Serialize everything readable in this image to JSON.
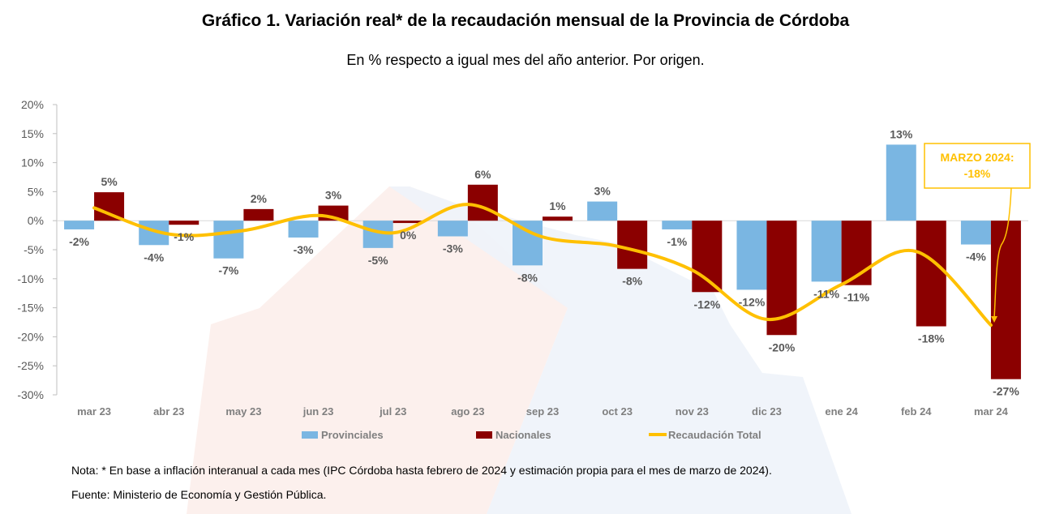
{
  "chart_data": {
    "type": "bar",
    "title": "Gráfico 1. Variación real* de la recaudación mensual de la Provincia de Córdoba",
    "subtitle": "En % respecto a igual mes del año anterior. Por origen.",
    "categories": [
      "mar 23",
      "abr 23",
      "may 23",
      "jun 23",
      "jul 23",
      "ago 23",
      "sep 23",
      "oct 23",
      "nov 23",
      "dic 23",
      "ene 24",
      "feb 24",
      "mar 24"
    ],
    "ylim": [
      -30,
      20
    ],
    "yticks": [
      20,
      15,
      10,
      5,
      0,
      -5,
      -10,
      -15,
      -20,
      -25,
      -30
    ],
    "ytick_labels": [
      "20%",
      "15%",
      "10%",
      "5%",
      "0%",
      "-5%",
      "-10%",
      "-15%",
      "-20%",
      "-25%",
      "-30%"
    ],
    "grid": false,
    "legend": "bottom",
    "series": [
      {
        "name": "Provinciales",
        "type": "bar",
        "color": "#7ab6e2",
        "values": [
          -1.5,
          -4.2,
          -6.5,
          -2.9,
          -4.7,
          -2.7,
          -7.7,
          3.3,
          -1.5,
          -11.9,
          -10.5,
          13.1,
          -4.1
        ],
        "labels": [
          "-2%",
          "-4%",
          "-7%",
          "-3%",
          "-5%",
          "-3%",
          "-8%",
          "3%",
          "-1%",
          "-12%",
          "-11%",
          "13%",
          "-4%"
        ]
      },
      {
        "name": "Nacionales",
        "type": "bar",
        "color": "#8b0000",
        "values": [
          4.9,
          -0.7,
          2.0,
          2.6,
          -0.4,
          6.2,
          0.7,
          -8.3,
          -12.3,
          -19.7,
          -11.1,
          -18.2,
          -27.3
        ],
        "labels": [
          "5%",
          "-1%",
          "2%",
          "3%",
          "0%",
          "6%",
          "1%",
          "-8%",
          "-12%",
          "-20%",
          "-11%",
          "-18%",
          "-27%"
        ]
      },
      {
        "name": "Recaudación Total",
        "type": "line",
        "color": "#ffc000",
        "values": [
          2.2,
          -2.3,
          -1.7,
          0.9,
          -2.1,
          2.8,
          -2.8,
          -4.4,
          -8.5,
          -17.0,
          -11.0,
          -5.3,
          -18.0
        ]
      }
    ],
    "annotation": {
      "line1": "MARZO 2024:",
      "line2": "-18%",
      "color": "#ffc000"
    }
  },
  "notes": {
    "nota": "Nota: * En base a inflación interanual a cada mes (IPC Córdoba hasta febrero de 2024 y estimación propia para el mes de marzo de 2024).",
    "fuente": "Fuente: Ministerio de Economía y Gestión Pública."
  }
}
